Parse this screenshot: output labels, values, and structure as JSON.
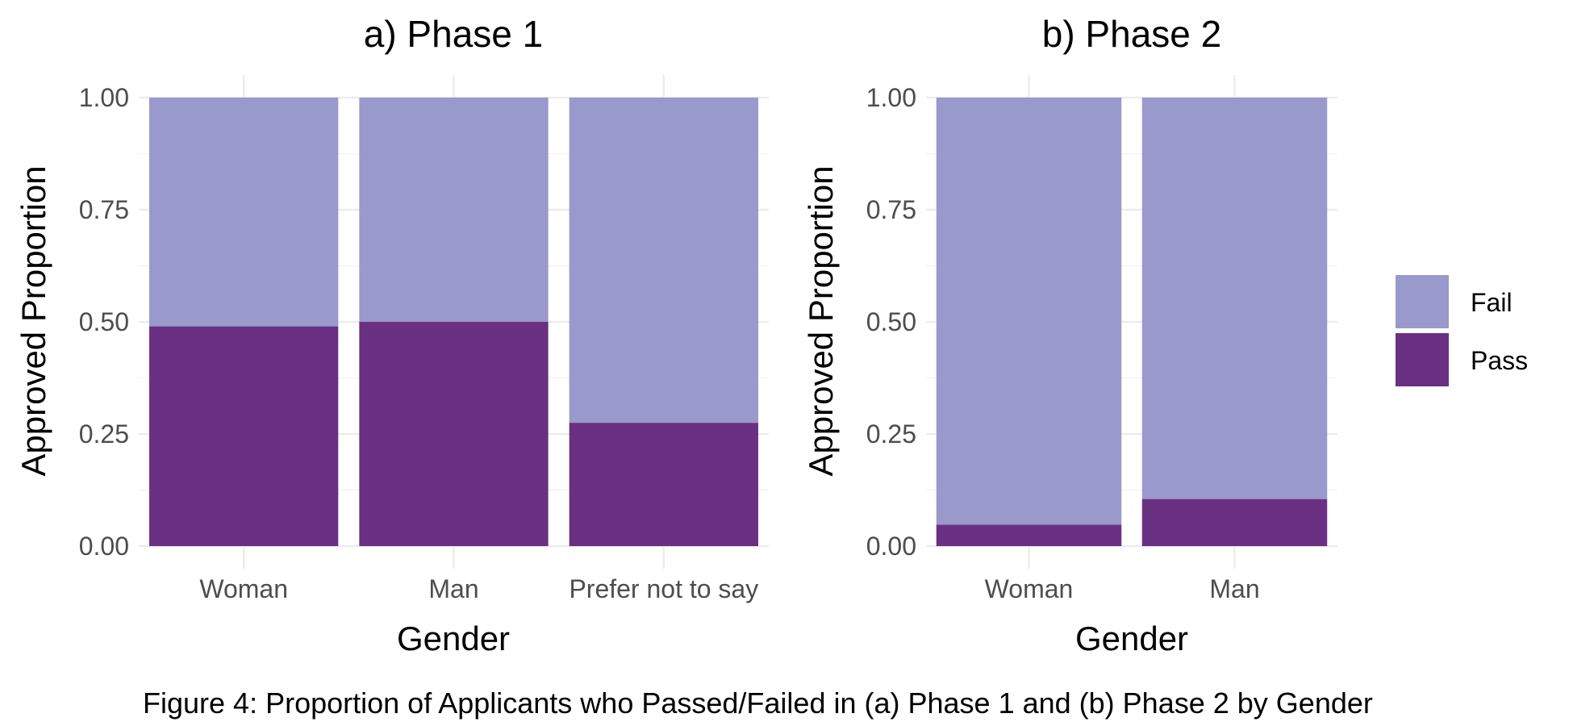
{
  "chart_data": [
    {
      "type": "bar",
      "stacked": true,
      "title": "a) Phase 1",
      "xlabel": "Gender",
      "ylabel": "Approved Proportion",
      "categories": [
        "Woman",
        "Man",
        "Prefer not to say"
      ],
      "series": [
        {
          "name": "Pass",
          "values": [
            0.49,
            0.5,
            0.275
          ]
        },
        {
          "name": "Fail",
          "values": [
            0.51,
            0.5,
            0.725
          ]
        }
      ],
      "ylim": [
        0,
        1
      ],
      "yticks": [
        "0.00",
        "0.25",
        "0.50",
        "0.75",
        "1.00"
      ],
      "grid": true
    },
    {
      "type": "bar",
      "stacked": true,
      "title": "b) Phase 2",
      "xlabel": "Gender",
      "ylabel": "Approved Proportion",
      "categories": [
        "Woman",
        "Man"
      ],
      "series": [
        {
          "name": "Pass",
          "values": [
            0.048,
            0.105
          ]
        },
        {
          "name": "Fail",
          "values": [
            0.952,
            0.895
          ]
        }
      ],
      "ylim": [
        0,
        1
      ],
      "yticks": [
        "0.00",
        "0.25",
        "0.50",
        "0.75",
        "1.00"
      ],
      "grid": true
    }
  ],
  "legend": {
    "placement": "right",
    "items": [
      {
        "label": "Fail",
        "color": "#9999cc"
      },
      {
        "label": "Pass",
        "color": "#6a3082"
      }
    ]
  },
  "colors": {
    "Fail": "#9999cc",
    "Pass": "#6a3082"
  },
  "caption": "Figure 4: Proportion of Applicants who Passed/Failed in (a) Phase 1 and (b) Phase 2 by Gender"
}
